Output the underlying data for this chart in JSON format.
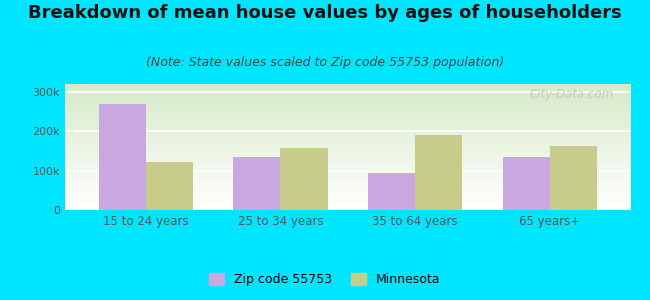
{
  "title": "Breakdown of mean house values by ages of householders",
  "subtitle": "(Note: State values scaled to Zip code 55753 population)",
  "categories": [
    "15 to 24 years",
    "25 to 34 years",
    "35 to 64 years",
    "65 years+"
  ],
  "zip_values": [
    270000,
    135000,
    95000,
    135000
  ],
  "mn_values": [
    122000,
    158000,
    190000,
    162000
  ],
  "zip_color": "#c9a8e0",
  "mn_color": "#c8cc8a",
  "background_outer": "#00e5ff",
  "ylim": [
    0,
    320000
  ],
  "yticks": [
    0,
    100000,
    200000,
    300000
  ],
  "ytick_labels": [
    "0",
    "100k",
    "200k",
    "300k"
  ],
  "legend_zip": "Zip code 55753",
  "legend_mn": "Minnesota",
  "bar_width": 0.35,
  "title_fontsize": 13,
  "subtitle_fontsize": 9,
  "watermark": "City-Data.com"
}
